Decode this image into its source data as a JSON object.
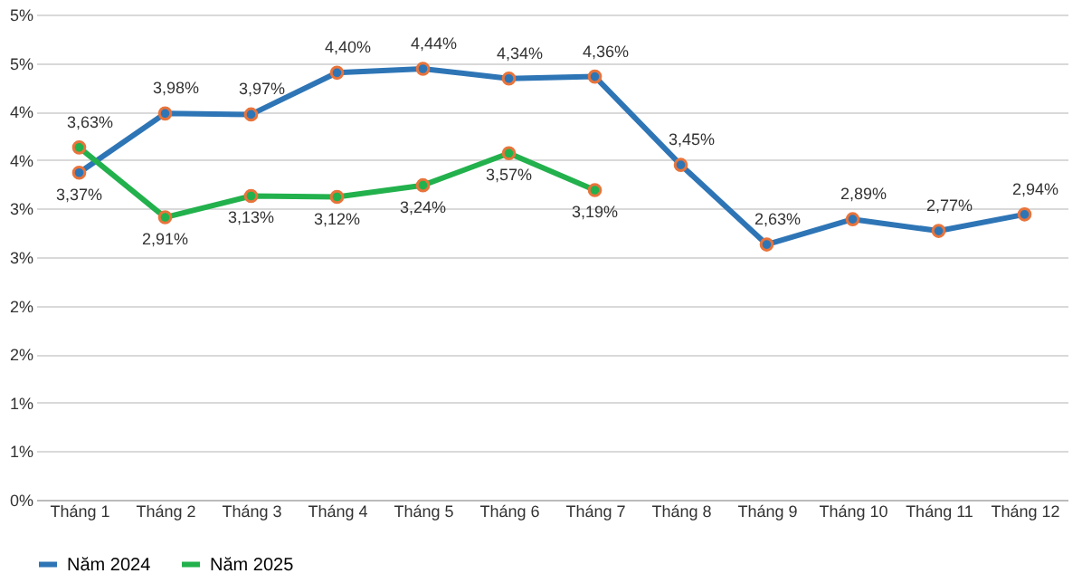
{
  "chart_data": {
    "type": "line",
    "categories": [
      "Tháng 1",
      "Tháng 2",
      "Tháng 3",
      "Tháng 4",
      "Tháng 5",
      "Tháng 6",
      "Tháng 7",
      "Tháng 8",
      "Tháng 9",
      "Tháng 10",
      "Tháng 11",
      "Tháng 12"
    ],
    "series": [
      {
        "name": "Năm 2024",
        "color": "#2e75b6",
        "values": [
          3.37,
          3.98,
          3.97,
          4.4,
          4.44,
          4.34,
          4.36,
          3.45,
          2.63,
          2.89,
          2.77,
          2.94
        ],
        "value_labels": [
          "3,37%",
          "3,98%",
          "3,97%",
          "4,40%",
          "4,44%",
          "4,34%",
          "4,36%",
          "3,45%",
          "2,63%",
          "2,89%",
          "2,77%",
          "2,94%"
        ]
      },
      {
        "name": "Năm 2025",
        "color": "#22b14c",
        "values": [
          3.63,
          2.91,
          3.13,
          3.12,
          3.24,
          3.57,
          3.19,
          null,
          null,
          null,
          null,
          null
        ],
        "value_labels": [
          "3,63%",
          "2,91%",
          "3,13%",
          "3,12%",
          "3,24%",
          "3,57%",
          "3,19%",
          null,
          null,
          null,
          null,
          null
        ]
      }
    ],
    "ylim": [
      0,
      5
    ],
    "yticks": [
      {
        "value": 0,
        "label": "0%"
      },
      {
        "value": 0.5,
        "label": "1%"
      },
      {
        "value": 1,
        "label": "1%"
      },
      {
        "value": 1.5,
        "label": "2%"
      },
      {
        "value": 2,
        "label": "2%"
      },
      {
        "value": 2.5,
        "label": "3%"
      },
      {
        "value": 3,
        "label": "3%"
      },
      {
        "value": 3.5,
        "label": "4%"
      },
      {
        "value": 4,
        "label": "4%"
      },
      {
        "value": 4.5,
        "label": "5%"
      },
      {
        "value": 5,
        "label": "5%"
      }
    ],
    "grid": "y",
    "legend": "bottom",
    "marker": "circle",
    "line_style": "solid"
  }
}
